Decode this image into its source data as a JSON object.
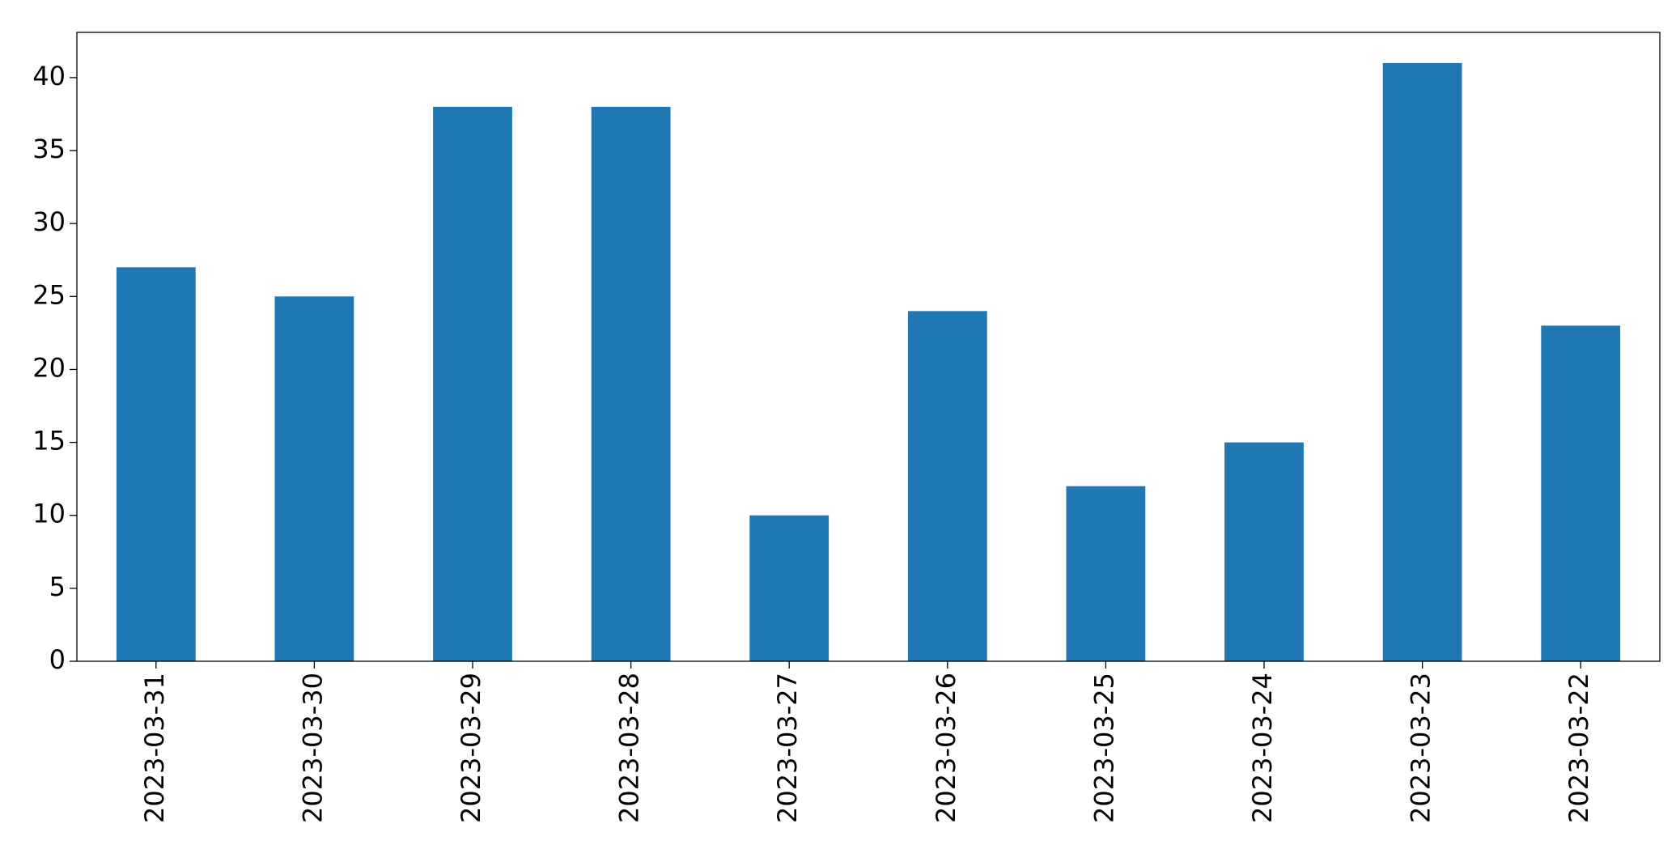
{
  "chart_data": {
    "type": "bar",
    "categories": [
      "2023-03-31",
      "2023-03-30",
      "2023-03-29",
      "2023-03-28",
      "2023-03-27",
      "2023-03-26",
      "2023-03-25",
      "2023-03-24",
      "2023-03-23",
      "2023-03-22"
    ],
    "values": [
      27,
      25,
      38,
      38,
      10,
      24,
      12,
      15,
      41,
      23
    ],
    "color": "#1f77b4",
    "ylim": [
      0,
      43.1
    ],
    "yticks": [
      0,
      5,
      10,
      15,
      20,
      25,
      30,
      35,
      40
    ],
    "grid": false
  }
}
